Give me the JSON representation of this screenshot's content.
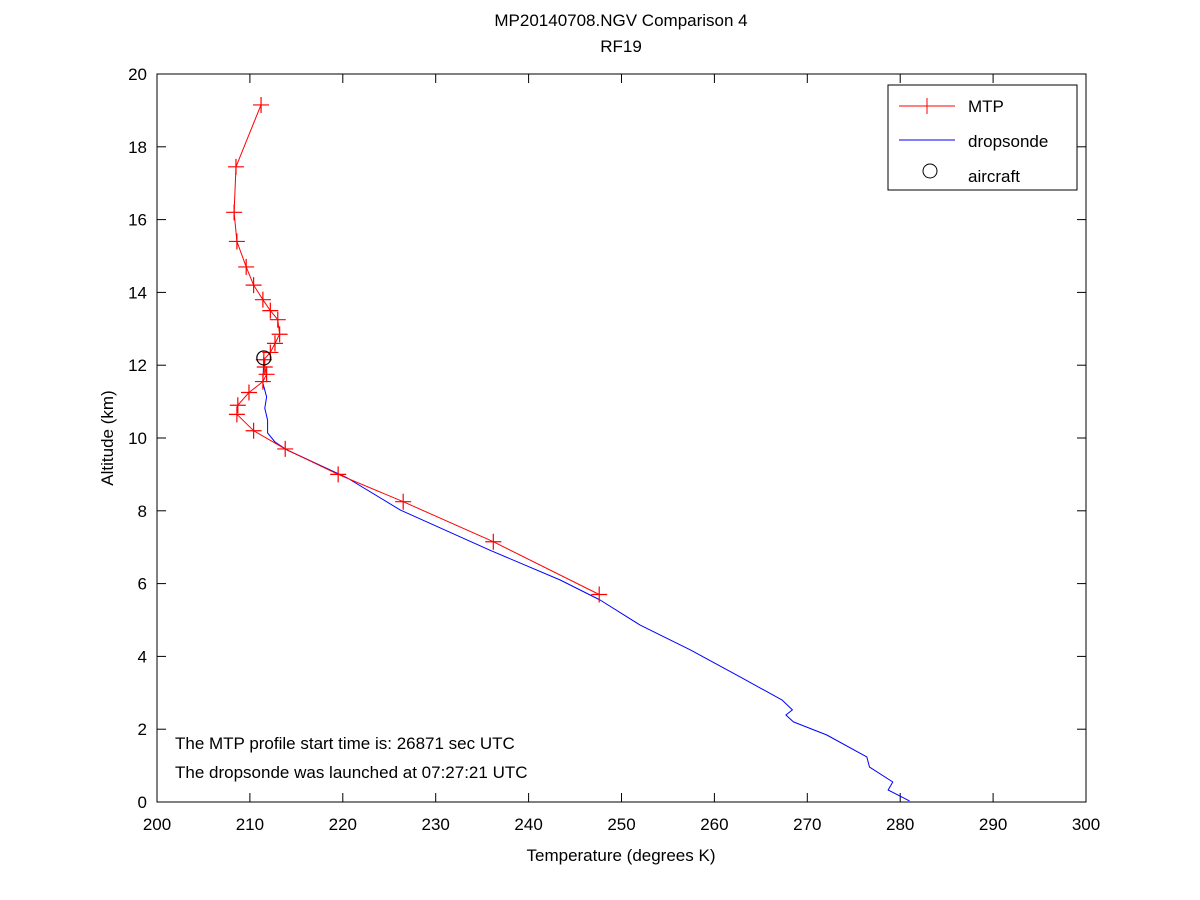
{
  "chart_data": {
    "type": "line",
    "title": "MP20140708.NGV Comparison 4",
    "subtitle": "RF19",
    "xlabel": "Temperature (degrees K)",
    "ylabel": "Altitude (km)",
    "xlim": [
      200,
      300
    ],
    "ylim": [
      0,
      20
    ],
    "xticks": [
      200,
      210,
      220,
      230,
      240,
      250,
      260,
      270,
      280,
      290,
      300
    ],
    "yticks": [
      0,
      2,
      4,
      6,
      8,
      10,
      12,
      14,
      16,
      18,
      20
    ],
    "grid": false,
    "legend_position": "top-right",
    "series": [
      {
        "name": "MTP",
        "color": "#ff0000",
        "marker": "plus",
        "points": [
          [
            211.2,
            19.15
          ],
          [
            208.5,
            17.45
          ],
          [
            208.3,
            16.2
          ],
          [
            208.6,
            15.4
          ],
          [
            209.6,
            14.7
          ],
          [
            210.4,
            14.2
          ],
          [
            211.4,
            13.8
          ],
          [
            212.2,
            13.5
          ],
          [
            213.0,
            13.25
          ],
          [
            213.2,
            12.85
          ],
          [
            212.7,
            12.6
          ],
          [
            212.2,
            12.35
          ],
          [
            211.5,
            12.15
          ],
          [
            211.6,
            11.95
          ],
          [
            211.8,
            11.75
          ],
          [
            211.4,
            11.55
          ],
          [
            209.9,
            11.25
          ],
          [
            208.7,
            10.9
          ],
          [
            208.6,
            10.65
          ],
          [
            210.4,
            10.2
          ],
          [
            213.8,
            9.7
          ],
          [
            219.5,
            9.0
          ],
          [
            226.5,
            8.25
          ],
          [
            236.2,
            7.15
          ],
          [
            247.6,
            5.7
          ]
        ]
      },
      {
        "name": "dropsonde",
        "color": "#0000ff",
        "marker": "none",
        "points": [
          [
            211.5,
            12.23
          ],
          [
            211.4,
            11.51
          ],
          [
            211.8,
            11.13
          ],
          [
            211.6,
            10.82
          ],
          [
            211.9,
            10.49
          ],
          [
            211.9,
            10.14
          ],
          [
            212.7,
            9.89
          ],
          [
            214.0,
            9.67
          ],
          [
            220.5,
            8.9
          ],
          [
            226.2,
            8.02
          ],
          [
            235.8,
            6.92
          ],
          [
            243.4,
            6.1
          ],
          [
            247.7,
            5.55
          ],
          [
            252.0,
            4.86
          ],
          [
            257.4,
            4.18
          ],
          [
            262.8,
            3.43
          ],
          [
            267.3,
            2.8
          ],
          [
            268.4,
            2.53
          ],
          [
            267.7,
            2.39
          ],
          [
            268.5,
            2.2
          ],
          [
            272.1,
            1.84
          ],
          [
            276.4,
            1.24
          ],
          [
            276.7,
            0.96
          ],
          [
            279.2,
            0.55
          ],
          [
            278.7,
            0.33
          ],
          [
            281.0,
            0.03
          ]
        ]
      },
      {
        "name": "aircraft",
        "color": "#000000",
        "marker": "circle",
        "points": [
          [
            211.5,
            12.2
          ]
        ]
      }
    ],
    "annotations": [
      "The MTP profile start time is: 26871 sec UTC",
      "The dropsonde was launched at 07:27:21 UTC"
    ]
  }
}
